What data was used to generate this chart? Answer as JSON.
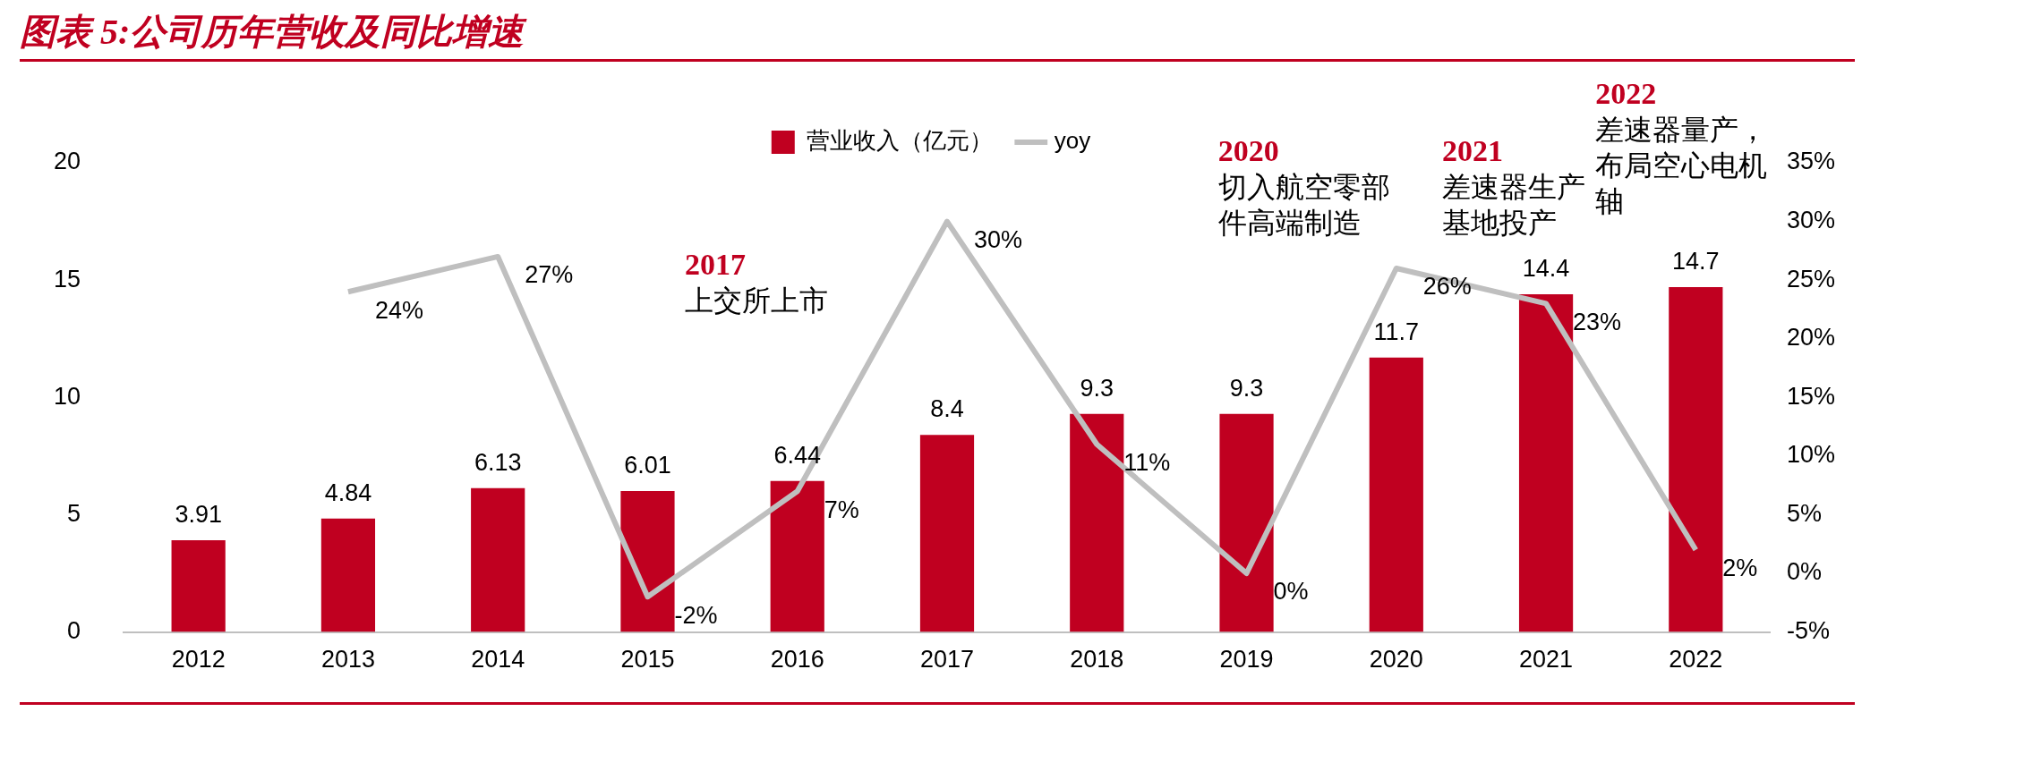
{
  "chart_data": {
    "type": "bar",
    "title": "图表 5:公司历年营收及同比增速",
    "categories": [
      "2012",
      "2013",
      "2014",
      "2015",
      "2016",
      "2017",
      "2018",
      "2019",
      "2020",
      "2021",
      "2022"
    ],
    "series": [
      {
        "name": "营业收入（亿元）",
        "color": "#c00020",
        "values": [
          3.91,
          4.84,
          6.13,
          6.01,
          6.44,
          8.4,
          9.3,
          9.3,
          11.7,
          14.4,
          14.7
        ],
        "value_labels": [
          "3.91",
          "4.84",
          "6.13",
          "6.01",
          "6.44",
          "8.4",
          "9.3",
          "9.3",
          "11.7",
          "14.4",
          "14.7"
        ]
      },
      {
        "name": "yoy",
        "type": "line",
        "axis": "y2",
        "color": "#bfbfbf",
        "values": [
          null,
          24,
          27,
          -2,
          7,
          30,
          11,
          0,
          26,
          23,
          2
        ],
        "value_labels": [
          null,
          "24%",
          "27%",
          "-2%",
          "7%",
          "30%",
          "11%",
          "0%",
          "26%",
          "23%",
          "2%"
        ]
      }
    ],
    "ylim": [
      0,
      20
    ],
    "yticks": [
      0,
      5,
      10,
      15,
      20
    ],
    "y2lim": [
      -5,
      35
    ],
    "y2ticks": [
      {
        "value": -5,
        "label": "-5%"
      },
      {
        "value": 0,
        "label": "0%"
      },
      {
        "value": 5,
        "label": "5%"
      },
      {
        "value": 10,
        "label": "10%"
      },
      {
        "value": 15,
        "label": "15%"
      },
      {
        "value": 20,
        "label": "20%"
      },
      {
        "value": 25,
        "label": "25%"
      },
      {
        "value": 30,
        "label": "30%"
      },
      {
        "value": 35,
        "label": "35%"
      }
    ],
    "legend": "top",
    "annotations": [
      "2017",
      "上交所上市",
      "2020",
      "切入航空零部件高端制造",
      "2021",
      "差速器生产基地投产",
      "2022",
      "差速器量产，布局空心电机轴"
    ]
  }
}
